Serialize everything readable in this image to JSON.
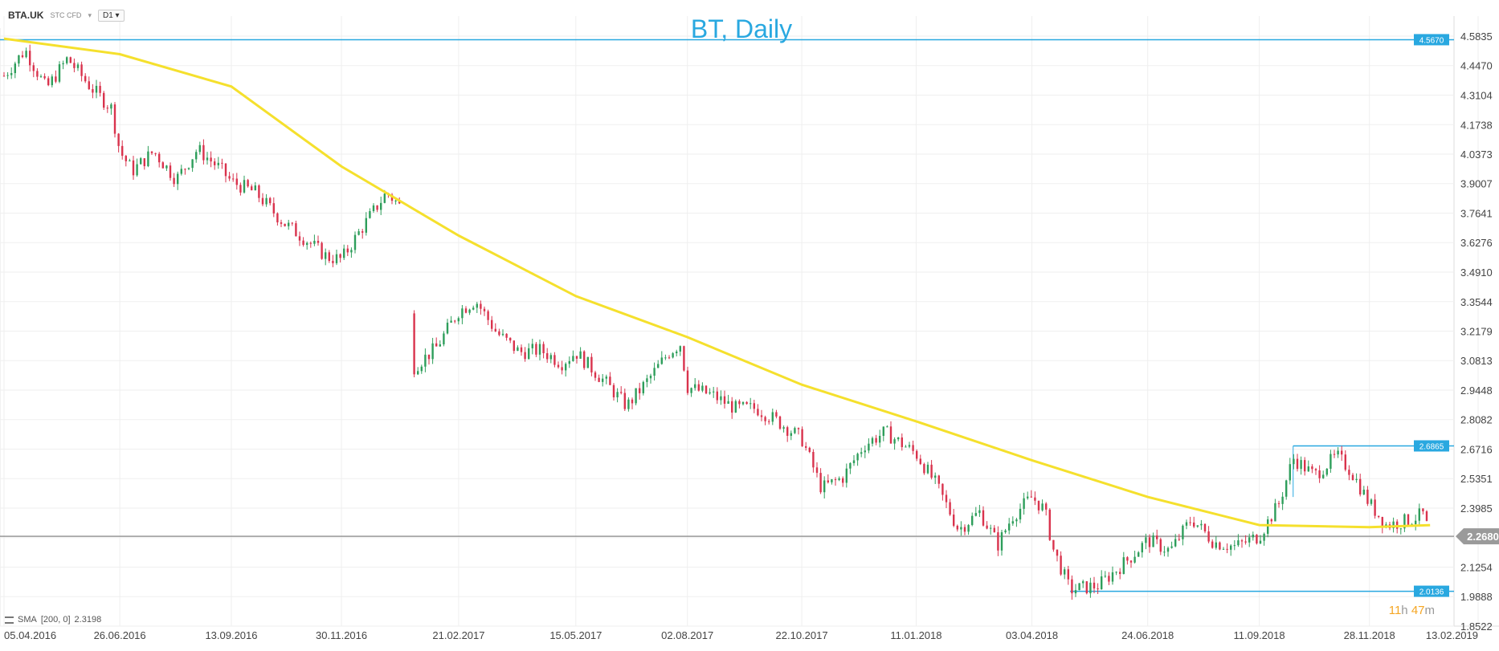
{
  "header": {
    "symbol": "BTA.UK",
    "instrument_type": "STC CFD",
    "timeframe": "D1",
    "chart_title": "BT, Daily"
  },
  "indicator_legend": {
    "name": "SMA",
    "params": "[200, 0]",
    "value": "2.3198"
  },
  "timer": {
    "hours": "11",
    "hours_unit": "h",
    "minutes": "47",
    "minutes_unit": "m"
  },
  "colors": {
    "up_candle": "#2e9e5b",
    "down_candle": "#d9334d",
    "sma_line": "#f5e02d",
    "level_line": "#29a8e0",
    "price_line": "#999999",
    "title": "#29a8e0"
  },
  "chart_data": {
    "type": "line",
    "title": "BT, Daily",
    "ylim": [
      1.8522,
      4.5835
    ],
    "y_ticks": [
      "4.5835",
      "4.4470",
      "4.3104",
      "4.1738",
      "4.0373",
      "3.9007",
      "3.7641",
      "3.6276",
      "3.4910",
      "3.3544",
      "3.2179",
      "3.0813",
      "2.9448",
      "2.8082",
      "2.6716",
      "2.5351",
      "2.3985",
      "2.2620",
      "2.1254",
      "1.9888",
      "1.8522"
    ],
    "x_ticks": [
      "05.04.2016",
      "26.06.2016",
      "13.09.2016",
      "30.11.2016",
      "21.02.2017",
      "15.05.2017",
      "02.08.2017",
      "22.10.2017",
      "11.01.2018",
      "03.04.2018",
      "24.06.2018",
      "11.09.2018",
      "28.11.2018",
      "13.02.2019"
    ],
    "series": [
      {
        "name": "BTA.UK",
        "type": "candlestick-close",
        "points": [
          [
            "05.04.2016",
            4.4
          ],
          [
            "20.04.2016",
            4.52
          ],
          [
            "05.05.2016",
            4.34
          ],
          [
            "20.05.2016",
            4.48
          ],
          [
            "05.06.2016",
            4.35
          ],
          [
            "20.06.2016",
            4.25
          ],
          [
            "26.06.2016",
            4.05
          ],
          [
            "05.07.2016",
            3.96
          ],
          [
            "20.07.2016",
            4.05
          ],
          [
            "05.08.2016",
            3.92
          ],
          [
            "20.08.2016",
            4.06
          ],
          [
            "05.09.2016",
            3.97
          ],
          [
            "13.09.2016",
            3.91
          ],
          [
            "30.09.2016",
            3.86
          ],
          [
            "20.10.2016",
            3.72
          ],
          [
            "05.11.2016",
            3.64
          ],
          [
            "20.11.2016",
            3.56
          ],
          [
            "30.11.2016",
            3.55
          ],
          [
            "15.12.2016",
            3.7
          ],
          [
            "01.01.2017",
            3.86
          ],
          [
            "10.01.2017",
            3.8
          ],
          [
            "20.01.2017",
            3.05
          ],
          [
            "05.02.2017",
            3.14
          ],
          [
            "21.02.2017",
            3.31
          ],
          [
            "05.03.2017",
            3.36
          ],
          [
            "20.03.2017",
            3.21
          ],
          [
            "05.04.2017",
            3.12
          ],
          [
            "20.04.2017",
            3.13
          ],
          [
            "05.05.2017",
            3.07
          ],
          [
            "15.05.2017",
            3.12
          ],
          [
            "05.06.2017",
            2.98
          ],
          [
            "20.06.2017",
            2.87
          ],
          [
            "05.07.2017",
            2.99
          ],
          [
            "20.07.2017",
            3.12
          ],
          [
            "28.07.2017",
            3.16
          ],
          [
            "02.08.2017",
            2.96
          ],
          [
            "20.08.2017",
            2.92
          ],
          [
            "05.09.2017",
            2.86
          ],
          [
            "20.09.2017",
            2.86
          ],
          [
            "05.10.2017",
            2.8
          ],
          [
            "22.10.2017",
            2.72
          ],
          [
            "05.11.2017",
            2.49
          ],
          [
            "20.11.2017",
            2.54
          ],
          [
            "05.12.2017",
            2.69
          ],
          [
            "20.12.2017",
            2.75
          ],
          [
            "11.01.2018",
            2.65
          ],
          [
            "25.01.2018",
            2.51
          ],
          [
            "10.02.2018",
            2.3
          ],
          [
            "25.02.2018",
            2.38
          ],
          [
            "10.03.2018",
            2.23
          ],
          [
            "20.03.2018",
            2.36
          ],
          [
            "03.04.2018",
            2.45
          ],
          [
            "12.04.2018",
            2.39
          ],
          [
            "18.04.2018",
            2.21
          ],
          [
            "30.04.2018",
            2.02
          ],
          [
            "20.05.2018",
            2.04
          ],
          [
            "10.06.2018",
            2.16
          ],
          [
            "24.06.2018",
            2.25
          ],
          [
            "10.07.2018",
            2.2
          ],
          [
            "25.07.2018",
            2.35
          ],
          [
            "10.08.2018",
            2.24
          ],
          [
            "25.08.2018",
            2.22
          ],
          [
            "11.09.2018",
            2.27
          ],
          [
            "25.09.2018",
            2.42
          ],
          [
            "05.10.2018",
            2.63
          ],
          [
            "20.10.2018",
            2.55
          ],
          [
            "05.11.2018",
            2.64
          ],
          [
            "15.11.2018",
            2.57
          ],
          [
            "28.11.2018",
            2.42
          ],
          [
            "10.12.2018",
            2.32
          ],
          [
            "25.12.2018",
            2.34
          ],
          [
            "05.01.2019",
            2.37
          ],
          [
            "10.01.2019",
            2.268
          ]
        ]
      },
      {
        "name": "SMA [200, 0]",
        "type": "line",
        "points": [
          [
            "05.04.2016",
            4.572
          ],
          [
            "26.06.2016",
            4.5
          ],
          [
            "13.09.2016",
            4.35
          ],
          [
            "30.11.2016",
            3.98
          ],
          [
            "21.02.2017",
            3.66
          ],
          [
            "15.05.2017",
            3.38
          ],
          [
            "02.08.2017",
            3.19
          ],
          [
            "22.10.2017",
            2.97
          ],
          [
            "11.01.2018",
            2.8
          ],
          [
            "03.04.2018",
            2.62
          ],
          [
            "24.06.2018",
            2.45
          ],
          [
            "11.09.2018",
            2.32
          ],
          [
            "28.11.2018",
            2.31
          ],
          [
            "10.01.2019",
            2.3198
          ]
        ]
      }
    ],
    "horizontal_levels": [
      {
        "label": "4.5670",
        "value": 4.567
      },
      {
        "label": "2.6865",
        "value": 2.6865
      },
      {
        "label": "2.0136",
        "value": 2.0136
      }
    ],
    "current_price": {
      "label": "2.2680",
      "value": 2.268
    },
    "grid": true,
    "legend": "bottom-left"
  }
}
